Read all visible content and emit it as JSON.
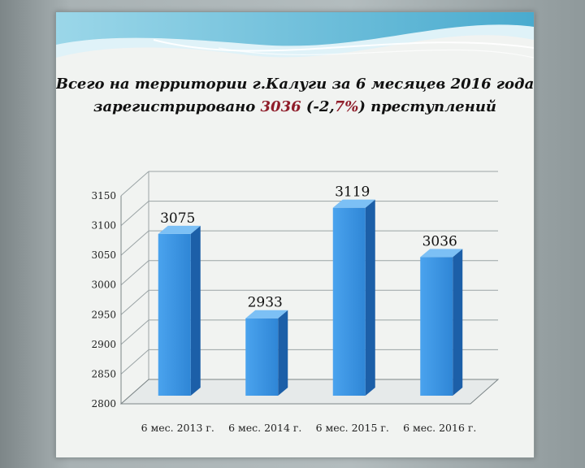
{
  "title": {
    "line1": "Всего на территории г.Калуги за 6 месяцев 2016 года",
    "line2_prefix": "зарегистрировано ",
    "line2_value": "3036",
    "line2_change_a": " (-2,",
    "line2_change_b": "7%",
    "line2_change_c": ")",
    "line2_suffix": " преступлений"
  },
  "colors": {
    "bar_front": "#3e97e6",
    "bar_side": "#1c5fa8",
    "bar_top": "#7cc0f5",
    "grid": "#9aa3a5",
    "title_highlight": "#8f1d2a"
  },
  "chart_data": {
    "type": "bar",
    "categories": [
      "6 мес. 2013 г.",
      "6 мес. 2014 г.",
      "6 мес. 2015 г.",
      "6 мес. 2016 г."
    ],
    "values": [
      3075,
      2933,
      3119,
      3036
    ],
    "data_labels": [
      "3075",
      "2933",
      "3119",
      "3036"
    ],
    "ylim": [
      2800,
      3150
    ],
    "yticks": [
      2800,
      2850,
      2900,
      2950,
      3000,
      3050,
      3100,
      3150
    ],
    "ytick_labels": [
      "2800",
      "2850",
      "2900",
      "2950",
      "3000",
      "3050",
      "3100",
      "3150"
    ],
    "grid": true,
    "style": "3d"
  }
}
